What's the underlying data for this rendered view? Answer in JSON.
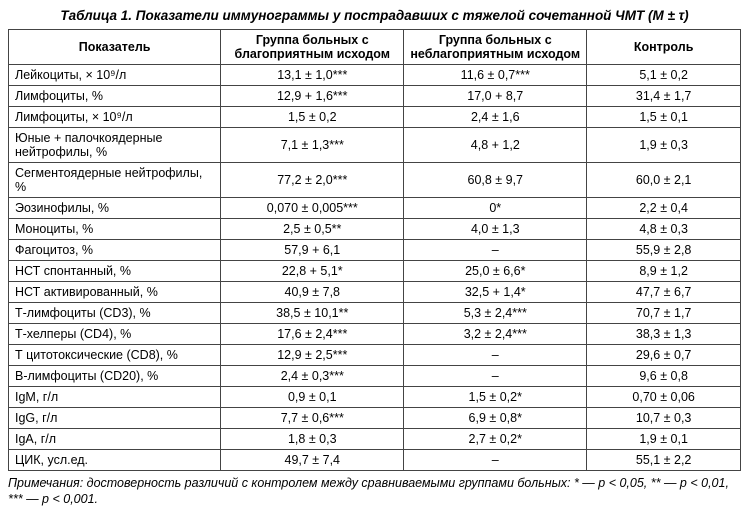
{
  "title": "Таблица 1. Показатели иммунограммы у пострадавших с тяжелой сочетанной ЧМТ (M ± τ)",
  "columns": [
    "Показатель",
    "Группа больных с благоприятным исходом",
    "Группа больных с неблагоприятным исходом",
    "Контроль"
  ],
  "rows": [
    {
      "label": "Лейкоциты, × 10⁹/л",
      "v": [
        "13,1 ± 1,0***",
        "11,6 ± 0,7***",
        "5,1 ± 0,2"
      ]
    },
    {
      "label": "Лимфоциты, %",
      "v": [
        "12,9 + 1,6***",
        "17,0 + 8,7",
        "31,4 ± 1,7"
      ]
    },
    {
      "label": "Лимфоциты, × 10⁹/л",
      "v": [
        "1,5 ± 0,2",
        "2,4 ± 1,6",
        "1,5 ± 0,1"
      ]
    },
    {
      "label": "Юные + палочкоядерные нейтрофилы, %",
      "v": [
        "7,1 ± 1,3***",
        "4,8 + 1,2",
        "1,9 ± 0,3"
      ]
    },
    {
      "label": "Сегментоядерные нейтрофилы, %",
      "v": [
        "77,2 ± 2,0***",
        "60,8 ± 9,7",
        "60,0 ± 2,1"
      ]
    },
    {
      "label": "Эозинофилы, %",
      "v": [
        "0,070 ± 0,005***",
        "0*",
        "2,2 ± 0,4"
      ]
    },
    {
      "label": "Моноциты, %",
      "v": [
        "2,5 ± 0,5**",
        "4,0 ± 1,3",
        "4,8 ± 0,3"
      ]
    },
    {
      "label": "Фагоцитоз, %",
      "v": [
        "57,9 + 6,1",
        "–",
        "55,9 ± 2,8"
      ]
    },
    {
      "label": "НСТ спонтанный, %",
      "v": [
        "22,8 + 5,1*",
        "25,0 ± 6,6*",
        "8,9 ± 1,2"
      ]
    },
    {
      "label": "НСТ активированный, %",
      "v": [
        "40,9 ± 7,8",
        "32,5 + 1,4*",
        "47,7 ± 6,7"
      ]
    },
    {
      "label": "Т-лимфоциты (CD3), %",
      "v": [
        "38,5 ± 10,1**",
        "5,3 ± 2,4***",
        "70,7 ± 1,7"
      ]
    },
    {
      "label": "Т-хелперы (CD4), %",
      "v": [
        "17,6 ± 2,4***",
        "3,2 ± 2,4***",
        "38,3 ± 1,3"
      ]
    },
    {
      "label": "Т цитотоксические (CD8), %",
      "v": [
        "12,9 ± 2,5***",
        "–",
        "29,6 ± 0,7"
      ]
    },
    {
      "label": "В-лимфоциты (CD20), %",
      "v": [
        "2,4 ± 0,3***",
        "–",
        "9,6 ± 0,8"
      ]
    },
    {
      "label": "IgM, г/л",
      "v": [
        "0,9 ± 0,1",
        "1,5 ± 0,2*",
        "0,70 ± 0,06"
      ]
    },
    {
      "label": "IgG, г/л",
      "v": [
        "7,7 ± 0,6***",
        "6,9 ± 0,8*",
        "10,7 ± 0,3"
      ]
    },
    {
      "label": "IgA, г/л",
      "v": [
        "1,8 ± 0,3",
        "2,7 ± 0,2*",
        "1,9 ± 0,1"
      ]
    },
    {
      "label": "ЦИК, усл.ед.",
      "v": [
        "49,7 ± 7,4",
        "–",
        "55,1 ± 2,2"
      ]
    }
  ],
  "footnote": "Примечания: достоверность различий с контролем между сравниваемыми группами больных: * — p < 0,05, ** — p < 0,01, *** — p < 0,001."
}
